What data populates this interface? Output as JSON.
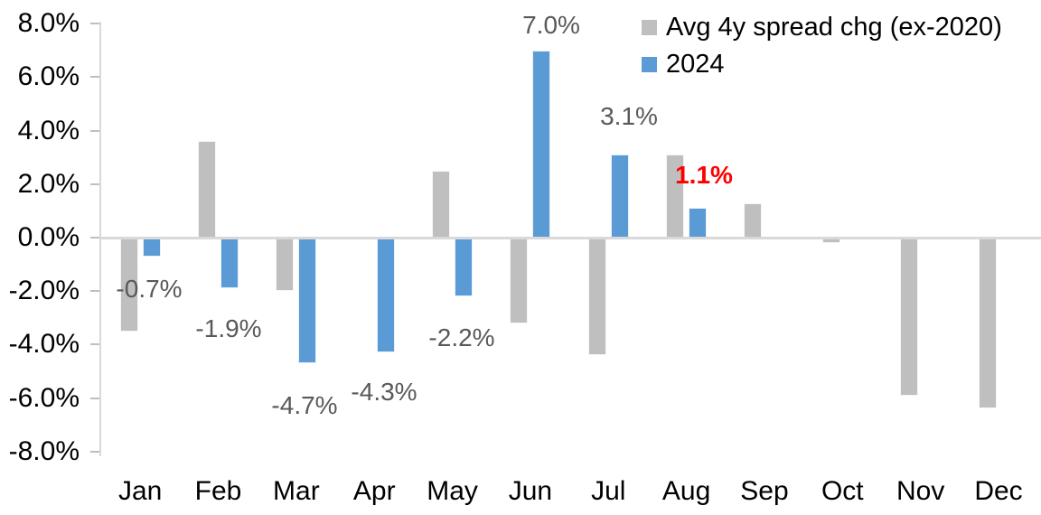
{
  "chart_data": {
    "type": "bar",
    "title": "",
    "categories": [
      "Jan",
      "Feb",
      "Mar",
      "Apr",
      "May",
      "Jun",
      "Jul",
      "Aug",
      "Sep",
      "Oct",
      "Nov",
      "Dec"
    ],
    "series": [
      {
        "name": "Avg 4y spread chg (ex-2020)",
        "color": "#BFBFBF",
        "values": [
          -3.5,
          3.6,
          -2.0,
          0.0,
          2.5,
          -3.2,
          -4.4,
          3.1,
          1.3,
          -0.2,
          -5.9,
          -6.4
        ]
      },
      {
        "name": "2024",
        "color": "#5B9BD5",
        "values": [
          -0.7,
          -1.9,
          -4.7,
          -4.3,
          -2.2,
          7.0,
          3.1,
          1.1,
          null,
          null,
          null,
          null
        ]
      }
    ],
    "data_labels": [
      {
        "category": "Jan",
        "series": "2024",
        "text": "-0.7%",
        "color": "#595959",
        "bold": false
      },
      {
        "category": "Feb",
        "series": "2024",
        "text": "-1.9%",
        "color": "#595959",
        "bold": false
      },
      {
        "category": "Mar",
        "series": "2024",
        "text": "-4.7%",
        "color": "#595959",
        "bold": false
      },
      {
        "category": "Apr",
        "series": "2024",
        "text": "-4.3%",
        "color": "#595959",
        "bold": false
      },
      {
        "category": "May",
        "series": "2024",
        "text": "-2.2%",
        "color": "#595959",
        "bold": false
      },
      {
        "category": "Jun",
        "series": "2024",
        "text": "7.0%",
        "color": "#595959",
        "bold": false
      },
      {
        "category": "Jul",
        "series": "2024",
        "text": "3.1%",
        "color": "#595959",
        "bold": false
      },
      {
        "category": "Aug",
        "series": "2024",
        "text": "1.1%",
        "color": "#FF0000",
        "bold": true
      }
    ],
    "y_axis": {
      "tick_labels": [
        "8.0%",
        "6.0%",
        "4.0%",
        "2.0%",
        "0.0%",
        "-2.0%",
        "-4.0%",
        "-6.0%",
        "-8.0%"
      ],
      "ylim": [
        -8,
        8
      ],
      "tick_step": 2
    },
    "legend_position": "top-right",
    "gridlines": "none",
    "baseline_color": "#D9D9D9"
  }
}
